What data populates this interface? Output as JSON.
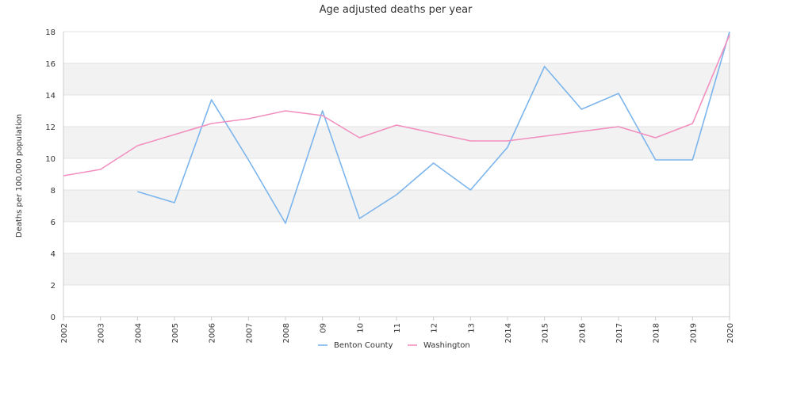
{
  "chart_data": {
    "type": "line",
    "title": "Age adjusted deaths per year",
    "xlabel": "",
    "ylabel": "Deaths per 100,000 population",
    "categories": [
      "2002",
      "2003",
      "2004",
      "2005",
      "2006",
      "2007",
      "2008",
      "09",
      "10",
      "11",
      "12",
      "13",
      "2014",
      "2015",
      "2016",
      "2017",
      "2018",
      "2019",
      "2020"
    ],
    "ylim": [
      0,
      18
    ],
    "yticks": [
      0,
      2,
      4,
      6,
      8,
      10,
      12,
      14,
      16,
      18
    ],
    "grid": "horizontal bands",
    "legend": "bottom-center",
    "series": [
      {
        "name": "Benton County",
        "color": "#7cb5ec",
        "values": [
          null,
          null,
          7.9,
          7.2,
          13.7,
          9.9,
          5.9,
          13.0,
          6.2,
          7.7,
          9.7,
          8.0,
          10.7,
          15.8,
          13.1,
          14.1,
          9.9,
          9.9,
          18.0
        ]
      },
      {
        "name": "Washington",
        "color": "#f28fbf",
        "values": [
          8.9,
          9.3,
          10.8,
          11.5,
          12.2,
          12.5,
          13.0,
          12.7,
          11.3,
          12.1,
          11.6,
          11.1,
          11.1,
          11.4,
          11.7,
          12.0,
          11.3,
          12.2,
          17.8
        ]
      }
    ]
  }
}
